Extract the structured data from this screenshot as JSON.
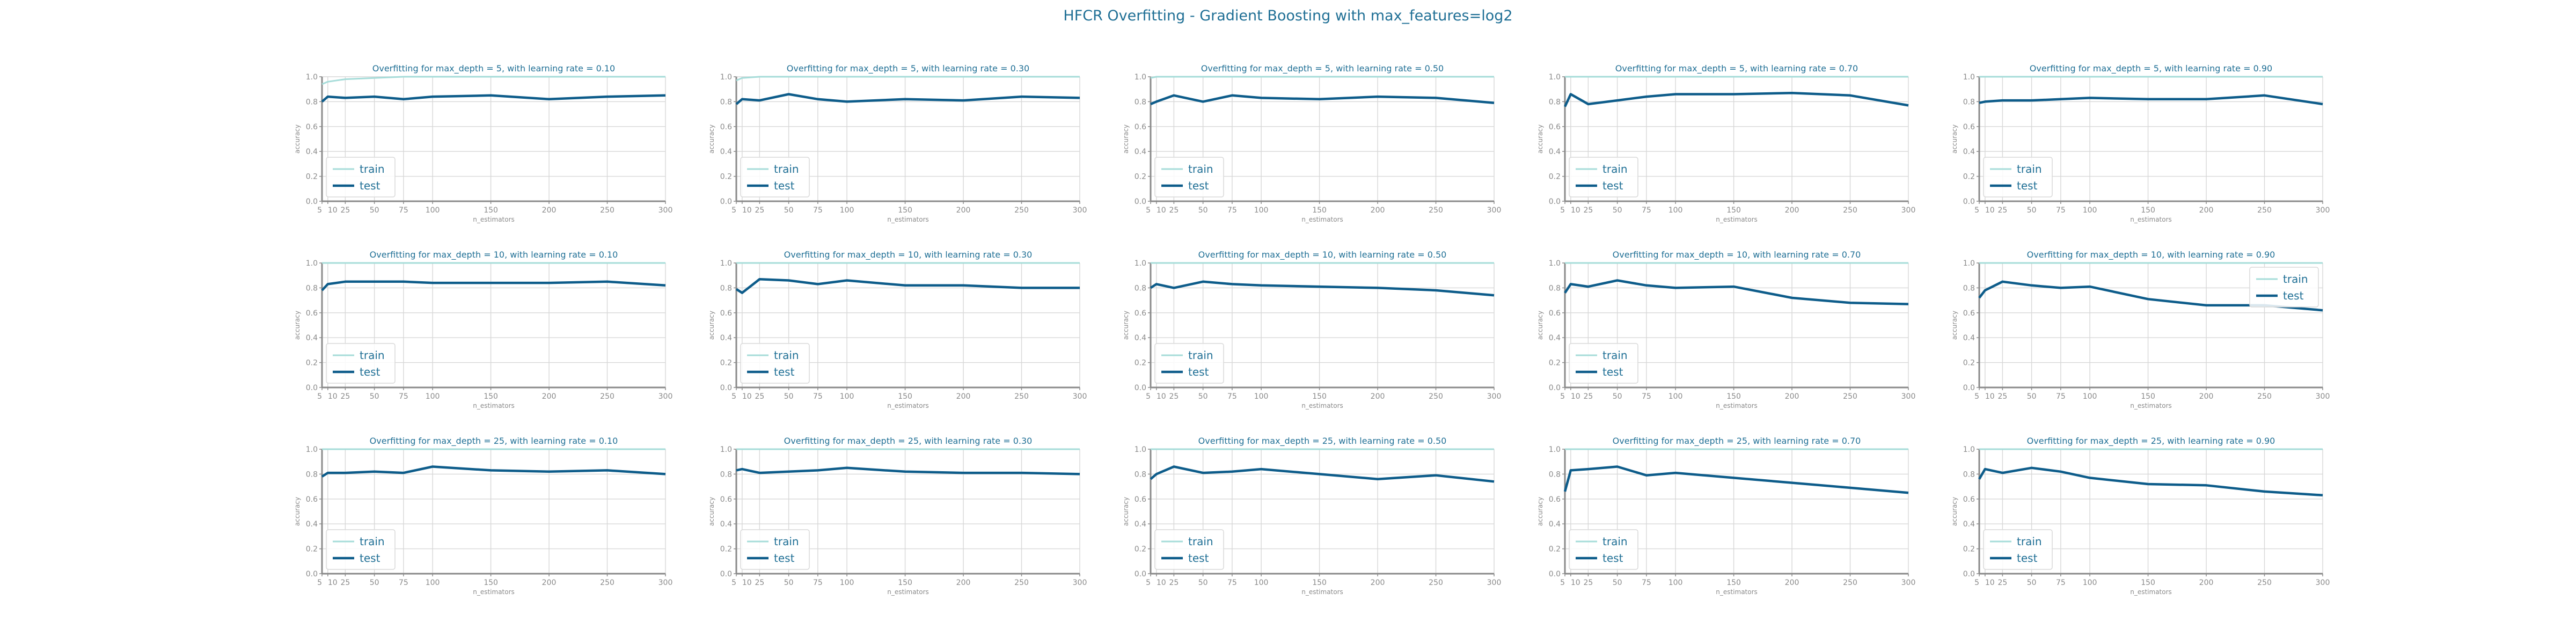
{
  "figure": {
    "title": "HFCR Overfitting - Gradient Boosting with max_features=log2",
    "colors": {
      "train": "#a6dcd9",
      "test": "#0d5c8a",
      "title": "#1f6f95",
      "axis": "#8a8a8a",
      "grid": "#d7d7d7"
    }
  },
  "chart_data": [
    {
      "type": "line",
      "title": "Overfitting for max_depth = 5, with learning rate = 0.10",
      "xlabel": "n_estimators",
      "ylabel": "accuracy",
      "ylim": [
        0,
        1
      ],
      "xlim": [
        5,
        300
      ],
      "grid": true,
      "legend": "bottom-left",
      "x": [
        5,
        10,
        25,
        50,
        75,
        100,
        150,
        200,
        250,
        300
      ],
      "xticks": [
        "5",
        "10",
        "25",
        "50",
        "75",
        "100",
        "150",
        "200",
        "250",
        "300"
      ],
      "yticks": [
        "0.0",
        "0.2",
        "0.4",
        "0.6",
        "0.8",
        "1.0"
      ],
      "series": [
        {
          "name": "train",
          "values": [
            0.94,
            0.96,
            0.98,
            0.99,
            1.0,
            1.0,
            1.0,
            1.0,
            1.0,
            1.0
          ]
        },
        {
          "name": "test",
          "values": [
            0.8,
            0.84,
            0.83,
            0.84,
            0.82,
            0.84,
            0.85,
            0.82,
            0.84,
            0.85
          ]
        }
      ]
    },
    {
      "type": "line",
      "title": "Overfitting for max_depth = 5, with learning rate = 0.30",
      "xlabel": "n_estimators",
      "ylabel": "accuracy",
      "ylim": [
        0,
        1
      ],
      "xlim": [
        5,
        300
      ],
      "grid": true,
      "legend": "bottom-left",
      "x": [
        5,
        10,
        25,
        50,
        75,
        100,
        150,
        200,
        250,
        300
      ],
      "xticks": [
        "5",
        "10",
        "25",
        "50",
        "75",
        "100",
        "150",
        "200",
        "250",
        "300"
      ],
      "yticks": [
        "0.0",
        "0.2",
        "0.4",
        "0.6",
        "0.8",
        "1.0"
      ],
      "series": [
        {
          "name": "train",
          "values": [
            0.97,
            0.99,
            1.0,
            1.0,
            1.0,
            1.0,
            1.0,
            1.0,
            1.0,
            1.0
          ]
        },
        {
          "name": "test",
          "values": [
            0.78,
            0.82,
            0.81,
            0.86,
            0.82,
            0.8,
            0.82,
            0.81,
            0.84,
            0.83
          ]
        }
      ]
    },
    {
      "type": "line",
      "title": "Overfitting for max_depth = 5, with learning rate = 0.50",
      "xlabel": "n_estimators",
      "ylabel": "accuracy",
      "ylim": [
        0,
        1
      ],
      "xlim": [
        5,
        300
      ],
      "grid": true,
      "legend": "bottom-left",
      "x": [
        5,
        10,
        25,
        50,
        75,
        100,
        150,
        200,
        250,
        300
      ],
      "xticks": [
        "5",
        "10",
        "25",
        "50",
        "75",
        "100",
        "150",
        "200",
        "250",
        "300"
      ],
      "yticks": [
        "0.0",
        "0.2",
        "0.4",
        "0.6",
        "0.8",
        "1.0"
      ],
      "series": [
        {
          "name": "train",
          "values": [
            0.99,
            1.0,
            1.0,
            1.0,
            1.0,
            1.0,
            1.0,
            1.0,
            1.0,
            1.0
          ]
        },
        {
          "name": "test",
          "values": [
            0.78,
            0.8,
            0.85,
            0.8,
            0.85,
            0.83,
            0.82,
            0.84,
            0.83,
            0.79
          ]
        }
      ]
    },
    {
      "type": "line",
      "title": "Overfitting for max_depth = 5, with learning rate = 0.70",
      "xlabel": "n_estimators",
      "ylabel": "accuracy",
      "ylim": [
        0,
        1
      ],
      "xlim": [
        5,
        300
      ],
      "grid": true,
      "legend": "bottom-left",
      "x": [
        5,
        10,
        25,
        50,
        75,
        100,
        150,
        200,
        250,
        300
      ],
      "xticks": [
        "5",
        "10",
        "25",
        "50",
        "75",
        "100",
        "150",
        "200",
        "250",
        "300"
      ],
      "yticks": [
        "0.0",
        "0.2",
        "0.4",
        "0.6",
        "0.8",
        "1.0"
      ],
      "series": [
        {
          "name": "train",
          "values": [
            1.0,
            1.0,
            1.0,
            1.0,
            1.0,
            1.0,
            1.0,
            1.0,
            1.0,
            1.0
          ]
        },
        {
          "name": "test",
          "values": [
            0.76,
            0.86,
            0.78,
            0.81,
            0.84,
            0.86,
            0.86,
            0.87,
            0.85,
            0.77
          ]
        }
      ]
    },
    {
      "type": "line",
      "title": "Overfitting for max_depth = 5, with learning rate = 0.90",
      "xlabel": "n_estimators",
      "ylabel": "accuracy",
      "ylim": [
        0,
        1
      ],
      "xlim": [
        5,
        300
      ],
      "grid": true,
      "legend": "bottom-left",
      "x": [
        5,
        10,
        25,
        50,
        75,
        100,
        150,
        200,
        250,
        300
      ],
      "xticks": [
        "5",
        "10",
        "25",
        "50",
        "75",
        "100",
        "150",
        "200",
        "250",
        "300"
      ],
      "yticks": [
        "0.0",
        "0.2",
        "0.4",
        "0.6",
        "0.8",
        "1.0"
      ],
      "series": [
        {
          "name": "train",
          "values": [
            1.0,
            1.0,
            1.0,
            1.0,
            1.0,
            1.0,
            1.0,
            1.0,
            1.0,
            1.0
          ]
        },
        {
          "name": "test",
          "values": [
            0.79,
            0.8,
            0.81,
            0.81,
            0.82,
            0.83,
            0.82,
            0.82,
            0.85,
            0.78
          ]
        }
      ]
    },
    {
      "type": "line",
      "title": "Overfitting for max_depth = 10, with learning rate = 0.10",
      "xlabel": "n_estimators",
      "ylabel": "accuracy",
      "ylim": [
        0,
        1
      ],
      "xlim": [
        5,
        300
      ],
      "grid": true,
      "legend": "bottom-left",
      "x": [
        5,
        10,
        25,
        50,
        75,
        100,
        150,
        200,
        250,
        300
      ],
      "xticks": [
        "5",
        "10",
        "25",
        "50",
        "75",
        "100",
        "150",
        "200",
        "250",
        "300"
      ],
      "yticks": [
        "0.0",
        "0.2",
        "0.4",
        "0.6",
        "0.8",
        "1.0"
      ],
      "series": [
        {
          "name": "train",
          "values": [
            1.0,
            1.0,
            1.0,
            1.0,
            1.0,
            1.0,
            1.0,
            1.0,
            1.0,
            1.0
          ]
        },
        {
          "name": "test",
          "values": [
            0.78,
            0.83,
            0.85,
            0.85,
            0.85,
            0.84,
            0.84,
            0.84,
            0.85,
            0.82
          ]
        }
      ]
    },
    {
      "type": "line",
      "title": "Overfitting for max_depth = 10, with learning rate = 0.30",
      "xlabel": "n_estimators",
      "ylabel": "accuracy",
      "ylim": [
        0,
        1
      ],
      "xlim": [
        5,
        300
      ],
      "grid": true,
      "legend": "bottom-left",
      "x": [
        5,
        10,
        25,
        50,
        75,
        100,
        150,
        200,
        250,
        300
      ],
      "xticks": [
        "5",
        "10",
        "25",
        "50",
        "75",
        "100",
        "150",
        "200",
        "250",
        "300"
      ],
      "yticks": [
        "0.0",
        "0.2",
        "0.4",
        "0.6",
        "0.8",
        "1.0"
      ],
      "series": [
        {
          "name": "train",
          "values": [
            1.0,
            1.0,
            1.0,
            1.0,
            1.0,
            1.0,
            1.0,
            1.0,
            1.0,
            1.0
          ]
        },
        {
          "name": "test",
          "values": [
            0.79,
            0.76,
            0.87,
            0.86,
            0.83,
            0.86,
            0.82,
            0.82,
            0.8,
            0.8
          ]
        }
      ]
    },
    {
      "type": "line",
      "title": "Overfitting for max_depth = 10, with learning rate = 0.50",
      "xlabel": "n_estimators",
      "ylabel": "accuracy",
      "ylim": [
        0,
        1
      ],
      "xlim": [
        5,
        300
      ],
      "grid": true,
      "legend": "bottom-left",
      "x": [
        5,
        10,
        25,
        50,
        75,
        100,
        150,
        200,
        250,
        300
      ],
      "xticks": [
        "5",
        "10",
        "25",
        "50",
        "75",
        "100",
        "150",
        "200",
        "250",
        "300"
      ],
      "yticks": [
        "0.0",
        "0.2",
        "0.4",
        "0.6",
        "0.8",
        "1.0"
      ],
      "series": [
        {
          "name": "train",
          "values": [
            1.0,
            1.0,
            1.0,
            1.0,
            1.0,
            1.0,
            1.0,
            1.0,
            1.0,
            1.0
          ]
        },
        {
          "name": "test",
          "values": [
            0.8,
            0.83,
            0.8,
            0.85,
            0.83,
            0.82,
            0.81,
            0.8,
            0.78,
            0.74
          ]
        }
      ]
    },
    {
      "type": "line",
      "title": "Overfitting for max_depth = 10, with learning rate = 0.70",
      "xlabel": "n_estimators",
      "ylabel": "accuracy",
      "ylim": [
        0,
        1
      ],
      "xlim": [
        5,
        300
      ],
      "grid": true,
      "legend": "bottom-left",
      "x": [
        5,
        10,
        25,
        50,
        75,
        100,
        150,
        200,
        250,
        300
      ],
      "xticks": [
        "5",
        "10",
        "25",
        "50",
        "75",
        "100",
        "150",
        "200",
        "250",
        "300"
      ],
      "yticks": [
        "0.0",
        "0.2",
        "0.4",
        "0.6",
        "0.8",
        "1.0"
      ],
      "series": [
        {
          "name": "train",
          "values": [
            1.0,
            1.0,
            1.0,
            1.0,
            1.0,
            1.0,
            1.0,
            1.0,
            1.0,
            1.0
          ]
        },
        {
          "name": "test",
          "values": [
            0.76,
            0.83,
            0.81,
            0.86,
            0.82,
            0.8,
            0.81,
            0.72,
            0.68,
            0.67
          ]
        }
      ]
    },
    {
      "type": "line",
      "title": "Overfitting for max_depth = 10, with learning rate = 0.90",
      "xlabel": "n_estimators",
      "ylabel": "accuracy",
      "ylim": [
        0,
        1
      ],
      "xlim": [
        5,
        300
      ],
      "grid": true,
      "legend": "top-right",
      "x": [
        5,
        10,
        25,
        50,
        75,
        100,
        150,
        200,
        250,
        300
      ],
      "xticks": [
        "5",
        "10",
        "25",
        "50",
        "75",
        "100",
        "150",
        "200",
        "250",
        "300"
      ],
      "yticks": [
        "0.0",
        "0.2",
        "0.4",
        "0.6",
        "0.8",
        "1.0"
      ],
      "series": [
        {
          "name": "train",
          "values": [
            1.0,
            1.0,
            1.0,
            1.0,
            1.0,
            1.0,
            1.0,
            1.0,
            1.0,
            1.0
          ]
        },
        {
          "name": "test",
          "values": [
            0.72,
            0.78,
            0.85,
            0.82,
            0.8,
            0.81,
            0.71,
            0.66,
            0.66,
            0.62
          ]
        }
      ]
    },
    {
      "type": "line",
      "title": "Overfitting for max_depth = 25, with learning rate = 0.10",
      "xlabel": "n_estimators",
      "ylabel": "accuracy",
      "ylim": [
        0,
        1
      ],
      "xlim": [
        5,
        300
      ],
      "grid": true,
      "legend": "bottom-left",
      "x": [
        5,
        10,
        25,
        50,
        75,
        100,
        150,
        200,
        250,
        300
      ],
      "xticks": [
        "5",
        "10",
        "25",
        "50",
        "75",
        "100",
        "150",
        "200",
        "250",
        "300"
      ],
      "yticks": [
        "0.0",
        "0.2",
        "0.4",
        "0.6",
        "0.8",
        "1.0"
      ],
      "series": [
        {
          "name": "train",
          "values": [
            1.0,
            1.0,
            1.0,
            1.0,
            1.0,
            1.0,
            1.0,
            1.0,
            1.0,
            1.0
          ]
        },
        {
          "name": "test",
          "values": [
            0.78,
            0.81,
            0.81,
            0.82,
            0.81,
            0.86,
            0.83,
            0.82,
            0.83,
            0.8
          ]
        }
      ]
    },
    {
      "type": "line",
      "title": "Overfitting for max_depth = 25, with learning rate = 0.30",
      "xlabel": "n_estimators",
      "ylabel": "accuracy",
      "ylim": [
        0,
        1
      ],
      "xlim": [
        5,
        300
      ],
      "grid": true,
      "legend": "bottom-left",
      "x": [
        5,
        10,
        25,
        50,
        75,
        100,
        150,
        200,
        250,
        300
      ],
      "xticks": [
        "5",
        "10",
        "25",
        "50",
        "75",
        "100",
        "150",
        "200",
        "250",
        "300"
      ],
      "yticks": [
        "0.0",
        "0.2",
        "0.4",
        "0.6",
        "0.8",
        "1.0"
      ],
      "series": [
        {
          "name": "train",
          "values": [
            1.0,
            1.0,
            1.0,
            1.0,
            1.0,
            1.0,
            1.0,
            1.0,
            1.0,
            1.0
          ]
        },
        {
          "name": "test",
          "values": [
            0.83,
            0.84,
            0.81,
            0.82,
            0.83,
            0.85,
            0.82,
            0.81,
            0.81,
            0.8
          ]
        }
      ]
    },
    {
      "type": "line",
      "title": "Overfitting for max_depth = 25, with learning rate = 0.50",
      "xlabel": "n_estimators",
      "ylabel": "accuracy",
      "ylim": [
        0,
        1
      ],
      "xlim": [
        5,
        300
      ],
      "grid": true,
      "legend": "bottom-left",
      "x": [
        5,
        10,
        25,
        50,
        75,
        100,
        150,
        200,
        250,
        300
      ],
      "xticks": [
        "5",
        "10",
        "25",
        "50",
        "75",
        "100",
        "150",
        "200",
        "250",
        "300"
      ],
      "yticks": [
        "0.0",
        "0.2",
        "0.4",
        "0.6",
        "0.8",
        "1.0"
      ],
      "series": [
        {
          "name": "train",
          "values": [
            1.0,
            1.0,
            1.0,
            1.0,
            1.0,
            1.0,
            1.0,
            1.0,
            1.0,
            1.0
          ]
        },
        {
          "name": "test",
          "values": [
            0.76,
            0.8,
            0.86,
            0.81,
            0.82,
            0.84,
            0.8,
            0.76,
            0.79,
            0.74
          ]
        }
      ]
    },
    {
      "type": "line",
      "title": "Overfitting for max_depth = 25, with learning rate = 0.70",
      "xlabel": "n_estimators",
      "ylabel": "accuracy",
      "ylim": [
        0,
        1
      ],
      "xlim": [
        5,
        300
      ],
      "grid": true,
      "legend": "bottom-left",
      "x": [
        5,
        10,
        25,
        50,
        75,
        100,
        150,
        200,
        250,
        300
      ],
      "xticks": [
        "5",
        "10",
        "25",
        "50",
        "75",
        "100",
        "150",
        "200",
        "250",
        "300"
      ],
      "yticks": [
        "0.0",
        "0.2",
        "0.4",
        "0.6",
        "0.8",
        "1.0"
      ],
      "series": [
        {
          "name": "train",
          "values": [
            1.0,
            1.0,
            1.0,
            1.0,
            1.0,
            1.0,
            1.0,
            1.0,
            1.0,
            1.0
          ]
        },
        {
          "name": "test",
          "values": [
            0.66,
            0.83,
            0.84,
            0.86,
            0.79,
            0.81,
            0.77,
            0.73,
            0.69,
            0.65
          ]
        }
      ]
    },
    {
      "type": "line",
      "title": "Overfitting for max_depth = 25, with learning rate = 0.90",
      "xlabel": "n_estimators",
      "ylabel": "accuracy",
      "ylim": [
        0,
        1
      ],
      "xlim": [
        5,
        300
      ],
      "grid": true,
      "legend": "bottom-left",
      "x": [
        5,
        10,
        25,
        50,
        75,
        100,
        150,
        200,
        250,
        300
      ],
      "xticks": [
        "5",
        "10",
        "25",
        "50",
        "75",
        "100",
        "150",
        "200",
        "250",
        "300"
      ],
      "yticks": [
        "0.0",
        "0.2",
        "0.4",
        "0.6",
        "0.8",
        "1.0"
      ],
      "series": [
        {
          "name": "train",
          "values": [
            1.0,
            1.0,
            1.0,
            1.0,
            1.0,
            1.0,
            1.0,
            1.0,
            1.0,
            1.0
          ]
        },
        {
          "name": "test",
          "values": [
            0.76,
            0.84,
            0.81,
            0.85,
            0.82,
            0.77,
            0.72,
            0.71,
            0.66,
            0.63
          ]
        }
      ]
    }
  ]
}
